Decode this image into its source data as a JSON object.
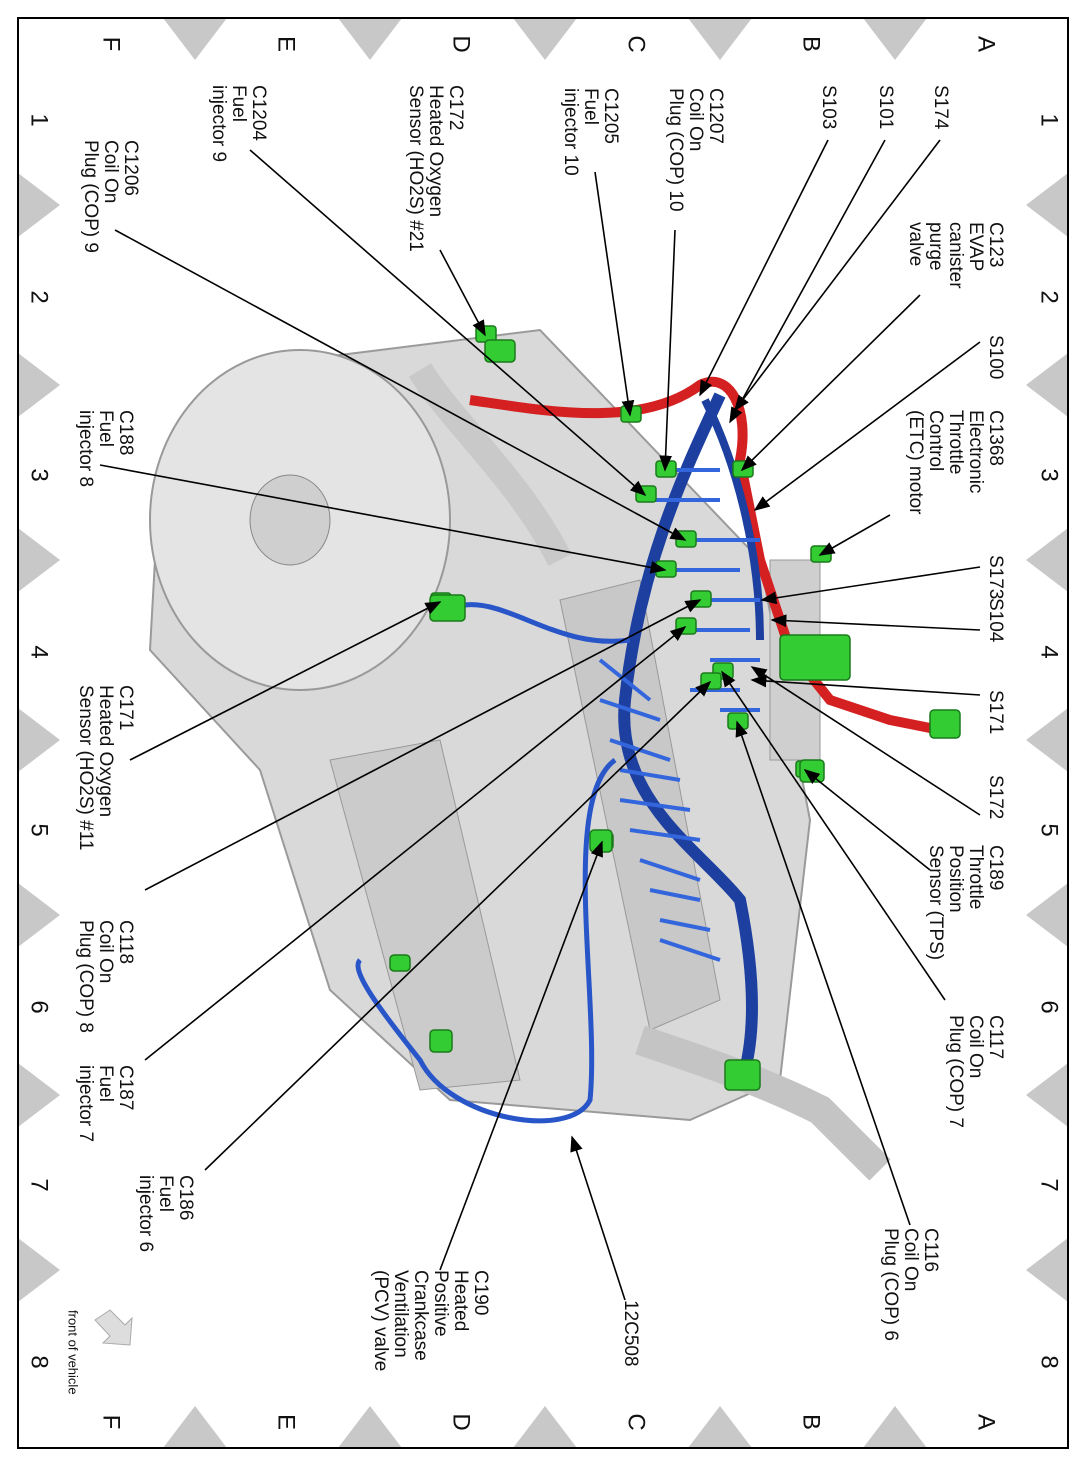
{
  "grid": {
    "columns": [
      "1",
      "2",
      "3",
      "4",
      "5",
      "6",
      "7",
      "8"
    ],
    "rows": [
      "A",
      "B",
      "C",
      "D",
      "E",
      "F"
    ]
  },
  "labels": [
    {
      "lines": [
        "S174"
      ]
    },
    {
      "lines": [
        "S101"
      ]
    },
    {
      "lines": [
        "S103"
      ]
    },
    {
      "lines": [
        "C1207",
        "Coil On",
        "Plug (COP) 10"
      ]
    },
    {
      "lines": [
        "C1205",
        "Fuel",
        "injector 10"
      ]
    },
    {
      "lines": [
        "C172",
        "Heated Oxygen",
        "Sensor (HO2S) #21"
      ]
    },
    {
      "lines": [
        "C1204",
        "Fuel",
        "injector 9"
      ]
    },
    {
      "lines": [
        "C1206",
        "Coil On",
        "Plug (COP) 9"
      ]
    },
    {
      "lines": [
        "C123",
        "EVAP",
        "canister",
        "purge",
        "valve"
      ]
    },
    {
      "lines": [
        "S100"
      ]
    },
    {
      "lines": [
        "C1368",
        "Electronic",
        "Throttle",
        "Control",
        "(ETC) motor"
      ]
    },
    {
      "lines": [
        "C188",
        "Fuel",
        "injector 8"
      ]
    },
    {
      "lines": [
        "S173"
      ]
    },
    {
      "lines": [
        "S104"
      ]
    },
    {
      "lines": [
        "S171"
      ]
    },
    {
      "lines": [
        "S172"
      ]
    },
    {
      "lines": [
        "C189",
        "Throttle",
        "Position",
        "Sensor (TPS)"
      ]
    },
    {
      "lines": [
        "C171",
        "Heated Oxygen",
        "Sensor (HO2S) #11"
      ]
    },
    {
      "lines": [
        "C118",
        "Coil On",
        "Plug (COP) 8"
      ]
    },
    {
      "lines": [
        "C117",
        "Coil On",
        "Plug (COP) 7"
      ]
    },
    {
      "lines": [
        "C187",
        "Fuel",
        "injector 7"
      ]
    },
    {
      "lines": [
        "C186",
        "Fuel",
        "injector 6"
      ]
    },
    {
      "lines": [
        "C116",
        "Coil On",
        "Plug (COP) 6"
      ]
    },
    {
      "lines": [
        "C190",
        "Heated",
        "Positive",
        "Crankcase",
        "Ventilation",
        "(PCV) valve"
      ]
    },
    {
      "lines": [
        "12C508"
      ]
    }
  ],
  "orientation_note": "front of vehicle"
}
